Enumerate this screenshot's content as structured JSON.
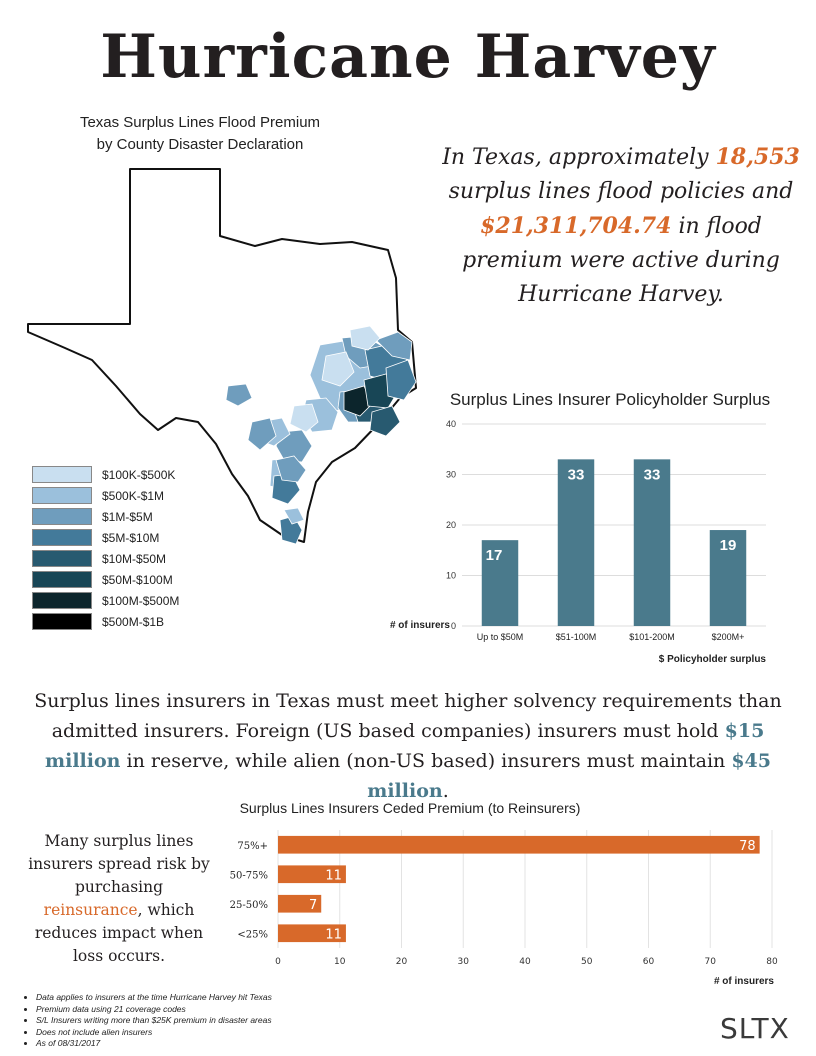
{
  "title": "Hurricane Harvey",
  "map": {
    "title_line1": "Texas Surplus Lines Flood Premium",
    "title_line2": "by County Disaster Declaration",
    "legend": [
      {
        "label": "$100K-$500K",
        "color": "#c9dff0"
      },
      {
        "label": "$500K-$1M",
        "color": "#9bc0dc"
      },
      {
        "label": "$1M-$5M",
        "color": "#6f9dbd"
      },
      {
        "label": "$5M-$10M",
        "color": "#437a9a"
      },
      {
        "label": "$10M-$50M",
        "color": "#285a70"
      },
      {
        "label": "$50M-$100M",
        "color": "#184656"
      },
      {
        "label": "$100M-$500M",
        "color": "#0c252c"
      },
      {
        "label": "$500M-$1B",
        "color": "#000000"
      }
    ]
  },
  "statement": {
    "part1": "In Texas, approximately ",
    "policies": "18,553",
    "part2": " surplus lines flood policies and ",
    "premium": "$21,311,704.74",
    "part3": " in flood premium were active during Hurricane Harvey."
  },
  "bar_chart_title": "Surplus Lines Insurer Policyholder Surplus",
  "reserve_paragraph": {
    "part1": "Surplus lines insurers in Texas must meet higher solvency requirements than admitted insurers. Foreign (US based companies) insurers must hold ",
    "foreign_amount": "$15 million",
    "part2": " in reserve, while alien (non-US based) insurers must maintain ",
    "alien_amount": "$45 million",
    "part3": "."
  },
  "hbar_chart_title": "Surplus Lines Insurers Ceded Premium (to Reinsurers)",
  "reinsurance_text": {
    "part1": "Many surplus lines insurers spread risk by purchasing ",
    "link": "reinsurance",
    "part2": ", which reduces impact when loss occurs."
  },
  "chart_data": [
    {
      "type": "bar",
      "title": "Surplus Lines Insurer Policyholder Surplus",
      "categories": [
        "Up to $50M",
        "$51-100M",
        "$101-200M",
        "$200M+"
      ],
      "values": [
        17,
        33,
        33,
        19
      ],
      "xlabel": "$ Policyholder surplus",
      "ylabel": "# of insurers",
      "ylim": [
        0,
        40
      ],
      "yticks": [
        0,
        10,
        20,
        30,
        40
      ],
      "color": "#4a7a8c",
      "grid": true
    },
    {
      "type": "bar",
      "orientation": "horizontal",
      "title": "Surplus Lines Insurers Ceded Premium (to Reinsurers)",
      "categories": [
        "75%+",
        "50-75%",
        "25-50%",
        "<25%"
      ],
      "values": [
        78,
        11,
        7,
        11
      ],
      "xlabel": "# of insurers",
      "xlim": [
        0,
        80
      ],
      "xticks": [
        0,
        10,
        20,
        30,
        40,
        50,
        60,
        70,
        80
      ],
      "color": "#d8692a",
      "grid": true
    }
  ],
  "notes": [
    "Data applies to insurers at the time Hurricane Harvey hit Texas",
    "Premium data using 21 coverage codes",
    "S/L Insurers writing more than $25K premium in disaster areas",
    "Does not include alien insurers",
    "As of 08/31/2017"
  ],
  "logo": "SLTX"
}
